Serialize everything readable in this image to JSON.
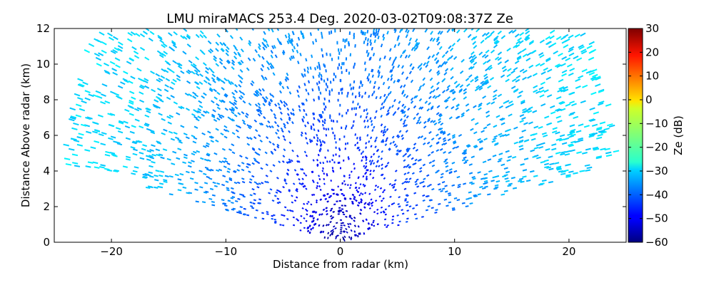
{
  "chart_data": {
    "type": "heatmap",
    "title": "LMU miraMACS 253.4 Deg. 2020-03-02T09:08:37Z  Ze",
    "xlabel": "Distance from radar (km)",
    "ylabel": "Distance Above radar  (km)",
    "xlim": [
      -25,
      25
    ],
    "ylim": [
      0,
      12
    ],
    "x_ticks": [
      -20,
      -10,
      0,
      10,
      20
    ],
    "x_tick_labels": [
      "−20",
      "−10",
      "0",
      "10",
      "20"
    ],
    "y_ticks": [
      0,
      2,
      4,
      6,
      8,
      10,
      12
    ],
    "y_tick_labels": [
      "0",
      "2",
      "4",
      "6",
      "8",
      "10",
      "12"
    ],
    "grid": false,
    "scan": {
      "azimuth_deg": 253.4,
      "elevation_min_deg": 10.3,
      "elevation_max_deg": 169.7,
      "field": "Ze",
      "typical_values": [
        {
          "distance_km": 0,
          "ze_db": -58
        },
        {
          "distance_km": 3,
          "ze_db": -50
        },
        {
          "distance_km": 6,
          "ze_db": -44
        },
        {
          "distance_km": 10,
          "ze_db": -38
        },
        {
          "distance_km": 15,
          "ze_db": -33
        },
        {
          "distance_km": 20,
          "ze_db": -30
        },
        {
          "distance_km": 25,
          "ze_db": -29
        }
      ]
    },
    "colorbar": {
      "label": "Ze (dB)",
      "colormap": "jet",
      "range": [
        -60,
        30
      ],
      "ticks": [
        -60,
        -50,
        -40,
        -30,
        -20,
        -10,
        0,
        10,
        20,
        30
      ],
      "tick_labels": [
        "−60",
        "−50",
        "−40",
        "−30",
        "−20",
        "−10",
        "0",
        "10",
        "20",
        "30"
      ]
    }
  }
}
